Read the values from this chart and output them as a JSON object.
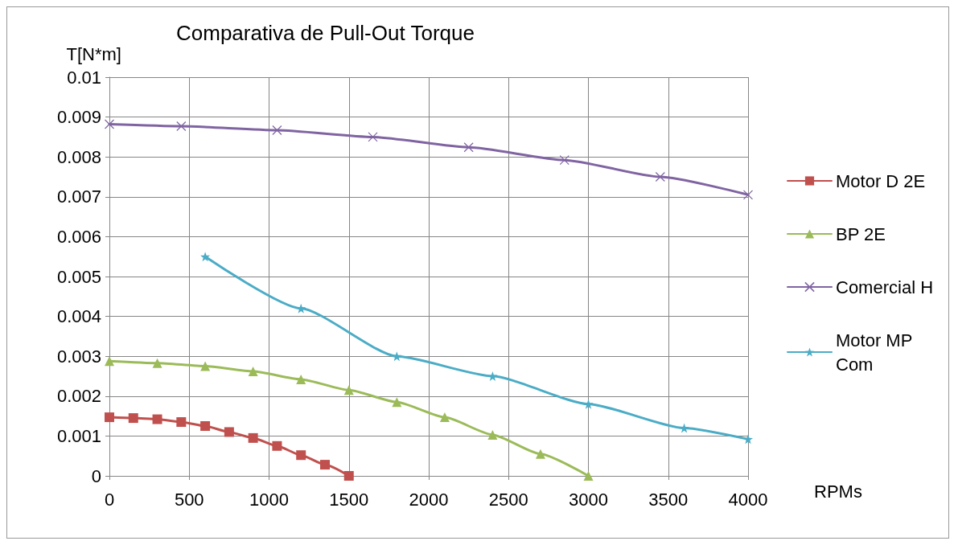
{
  "chart_data": {
    "type": "line",
    "title": "Comparativa de Pull-Out Torque",
    "xlabel": "RPMs",
    "ylabel": "T[N*m]",
    "xlim": [
      0,
      4000
    ],
    "xticks": [
      0,
      500,
      1000,
      1500,
      2000,
      2500,
      3000,
      3500,
      4000
    ],
    "ylim": [
      0,
      0.01
    ],
    "yticks": [
      0,
      0.001,
      0.002,
      0.003,
      0.004,
      0.005,
      0.006,
      0.007,
      0.008,
      0.009,
      0.01
    ],
    "grid": true,
    "legend": "right",
    "line_style": "solid",
    "series": [
      {
        "name": "Motor D 2E",
        "color": "#c0504d",
        "marker": "square",
        "x": [
          0,
          150,
          300,
          450,
          600,
          750,
          900,
          1050,
          1200,
          1350,
          1500
        ],
        "values": [
          0.00147,
          0.00145,
          0.00142,
          0.00135,
          0.00125,
          0.0011,
          0.00095,
          0.00075,
          0.00052,
          0.00028,
          0
        ]
      },
      {
        "name": "BP 2E",
        "color": "#9bbb59",
        "marker": "triangle",
        "x": [
          0,
          300,
          600,
          900,
          1200,
          1500,
          1800,
          2100,
          2400,
          2700,
          3000
        ],
        "values": [
          0.00288,
          0.00283,
          0.00275,
          0.00262,
          0.00242,
          0.00215,
          0.00185,
          0.00147,
          0.00103,
          0.00055,
          0
        ]
      },
      {
        "name": "Comercial H",
        "color": "#8064a2",
        "marker": "cross",
        "x": [
          0,
          450,
          1050,
          1650,
          2250,
          2850,
          3450,
          4000
        ],
        "values": [
          0.00882,
          0.00877,
          0.00867,
          0.0085,
          0.00824,
          0.00792,
          0.0075,
          0.00705
        ]
      },
      {
        "name": "Motor MP Com",
        "color": "#4bacc6",
        "marker": "star",
        "x": [
          600,
          1200,
          1800,
          2400,
          3000,
          3600,
          4000
        ],
        "values": [
          0.0055,
          0.0042,
          0.003,
          0.0025,
          0.0018,
          0.0012,
          0.00092
        ]
      }
    ]
  }
}
